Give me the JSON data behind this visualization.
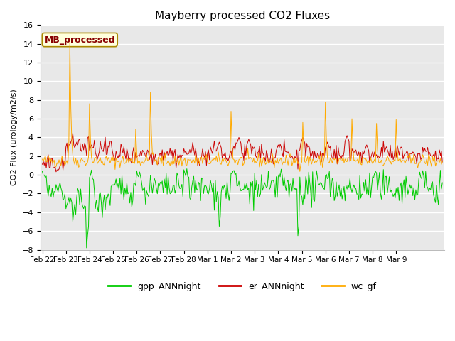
{
  "title": "Mayberry processed CO2 Fluxes",
  "ylabel": "CO2 Flux (urology/m2/s)",
  "ylim": [
    -8,
    16
  ],
  "yticks": [
    -8,
    -6,
    -4,
    -2,
    0,
    2,
    4,
    6,
    8,
    10,
    12,
    14,
    16
  ],
  "n_points": 408,
  "colors": {
    "gpp": "#00cc00",
    "er": "#cc0000",
    "wc": "#ffaa00",
    "background": "#e8e8e8",
    "grid": "#ffffff",
    "label_bg": "#ffffdd",
    "label_border": "#aa8800",
    "label_text": "#880000"
  },
  "legend": {
    "gpp_label": "gpp_ANNnight",
    "er_label": "er_ANNnight",
    "wc_label": "wc_gf"
  },
  "annotation": "MB_processed",
  "xtick_labels": [
    "Feb 22",
    "Feb 23",
    "Feb 24",
    "Feb 25",
    "Feb 26",
    "Feb 27",
    "Feb 28",
    "Mar 1",
    "Mar 2",
    "Mar 3",
    "Mar 4",
    "Mar 5",
    "Mar 6",
    "Mar 7",
    "Mar 8",
    "Mar 9"
  ],
  "xtick_positions": [
    0,
    24,
    48,
    72,
    96,
    120,
    144,
    168,
    192,
    216,
    240,
    264,
    288,
    312,
    336,
    360
  ]
}
